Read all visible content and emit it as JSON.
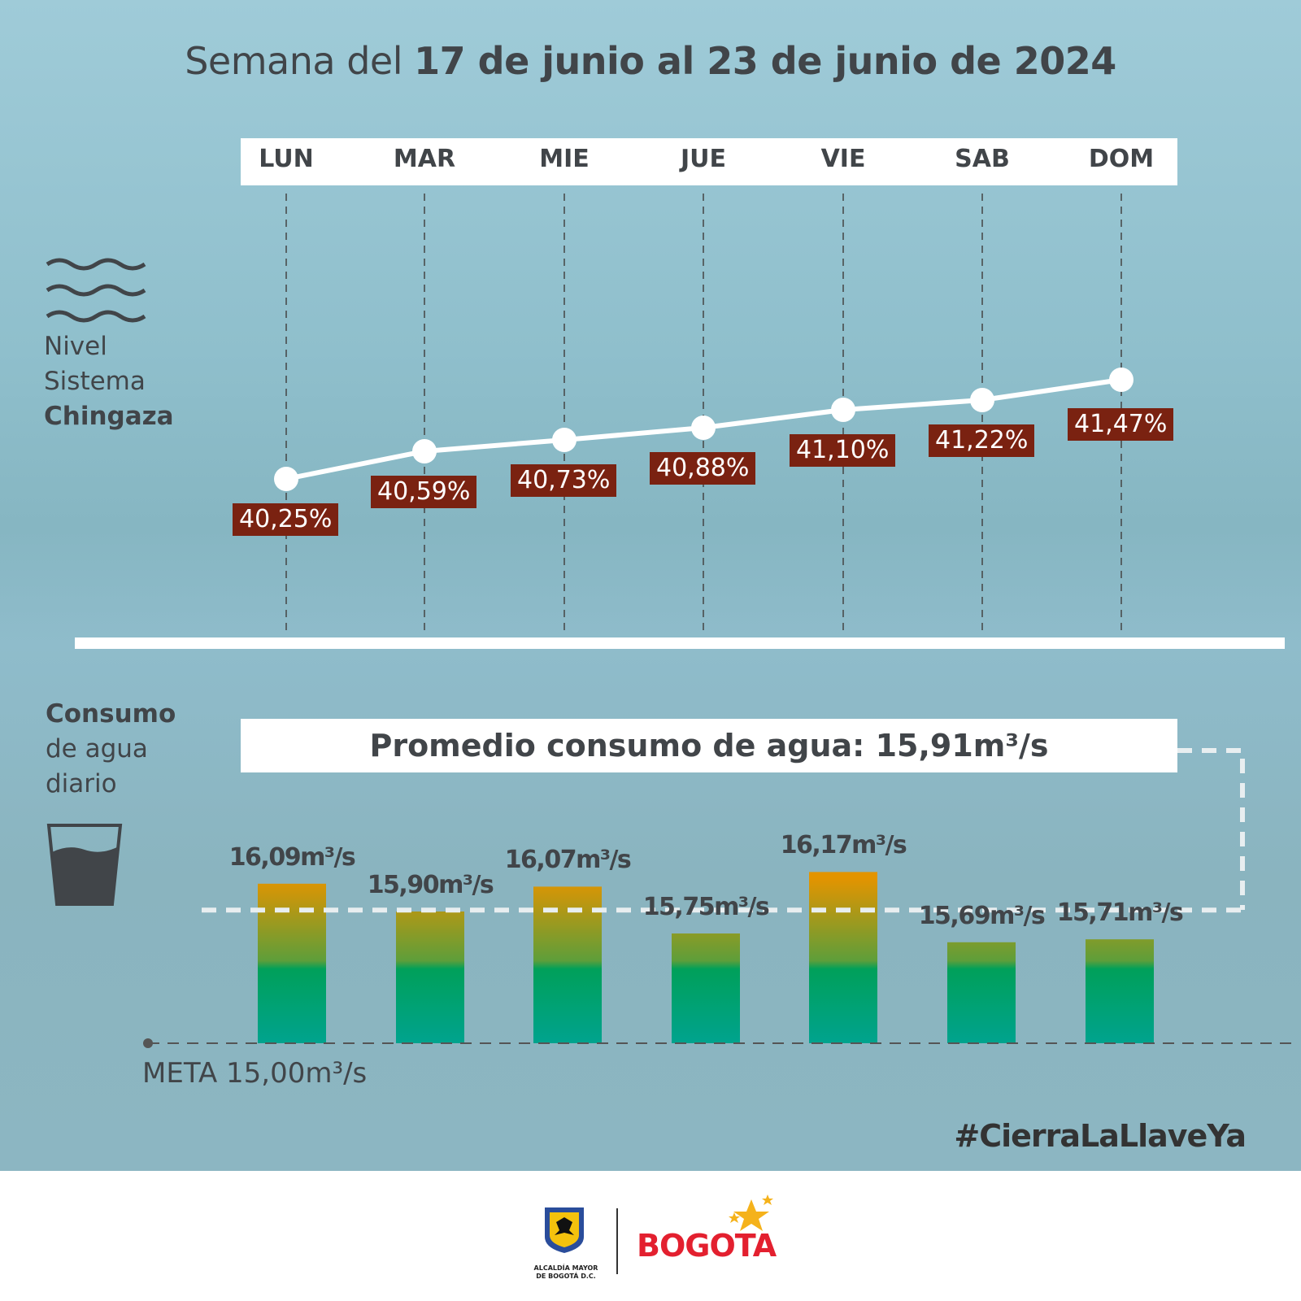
{
  "title": {
    "prefix": "Semana del ",
    "bold": "17 de junio al 23 de junio de 2024"
  },
  "level_section": {
    "label_lines": [
      "Nivel",
      "Sistema",
      "Chingaza"
    ]
  },
  "consumption_section": {
    "label_lines": [
      "Consumo",
      "de agua",
      "diario"
    ]
  },
  "average_label": "Promedio consumo de agua: 15,91m³/s",
  "meta_label": "META 15,00m³/s",
  "hashtag": "#CierraLaLlaveYa",
  "footer": {
    "alcaldia_lines": [
      "ALCALDÍA MAYOR",
      "DE BOGOTÁ D.C."
    ],
    "brand": "BOGOTA"
  },
  "colors": {
    "label_bg": "#7a2211",
    "bar_top": "#e39400",
    "bar_mid": "#00a05a",
    "bar_bottom": "#00a38e"
  },
  "chart_data": [
    {
      "type": "line",
      "categories": [
        "LUN",
        "MAR",
        "MIE",
        "JUE",
        "VIE",
        "SAB",
        "DOM"
      ],
      "values": [
        40.25,
        40.59,
        40.73,
        40.88,
        41.1,
        41.22,
        41.47
      ],
      "labels": [
        "40,25%",
        "40,59%",
        "40,73%",
        "40,88%",
        "41,10%",
        "41,22%",
        "41,47%"
      ],
      "unit": "%"
    },
    {
      "type": "bar",
      "categories": [
        "LUN",
        "MAR",
        "MIE",
        "JUE",
        "VIE",
        "SAB",
        "DOM"
      ],
      "values": [
        16.09,
        15.9,
        16.07,
        15.75,
        16.17,
        15.69,
        15.71
      ],
      "labels": [
        "16,09m³/s",
        "15,90m³/s",
        "16,07m³/s",
        "15,75m³/s",
        "16,17m³/s",
        "15,69m³/s",
        "15,71m³/s"
      ],
      "unit": "m³/s",
      "average": 15.91,
      "target": 15.0
    }
  ]
}
